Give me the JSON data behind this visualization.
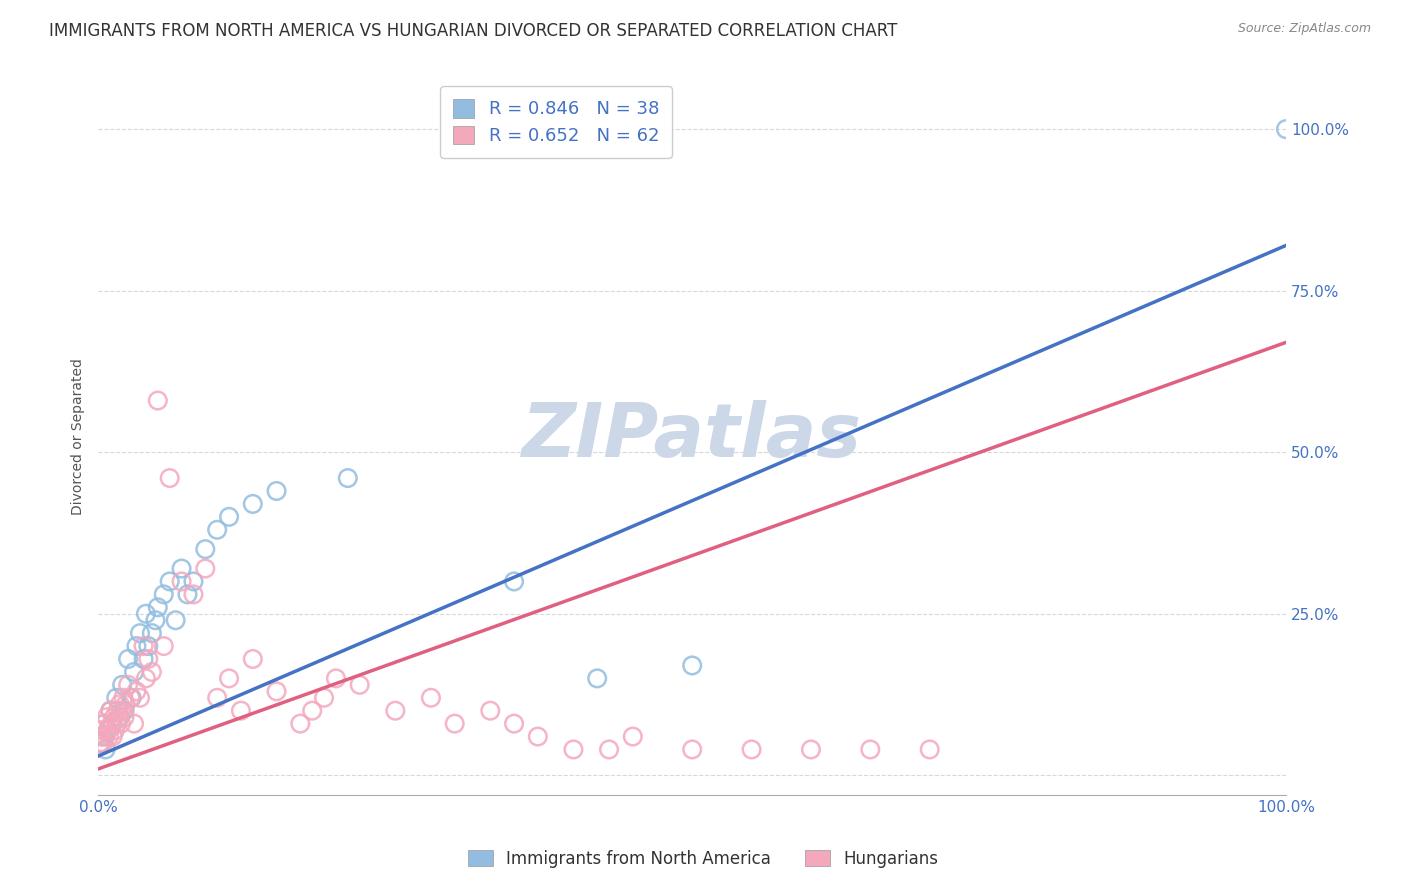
{
  "title": "IMMIGRANTS FROM NORTH AMERICA VS HUNGARIAN DIVORCED OR SEPARATED CORRELATION CHART",
  "source": "Source: ZipAtlas.com",
  "ylabel": "Divorced or Separated",
  "legend_blue_R": "R = 0.846",
  "legend_blue_N": "N = 38",
  "legend_pink_R": "R = 0.652",
  "legend_pink_N": "N = 62",
  "legend_blue_label": "Immigrants from North America",
  "legend_pink_label": "Hungarians",
  "blue_color": "#92bde0",
  "pink_color": "#f4a8bc",
  "blue_line_color": "#4472c4",
  "pink_line_color": "#e06080",
  "watermark": "ZIPatlas",
  "watermark_color": "#ccd8e8",
  "blue_scatter_x": [
    0.2,
    0.4,
    0.5,
    0.6,
    0.8,
    1.0,
    1.2,
    1.5,
    1.8,
    2.0,
    2.2,
    2.5,
    2.8,
    3.0,
    3.2,
    3.5,
    3.8,
    4.0,
    4.2,
    4.5,
    4.8,
    5.0,
    5.5,
    6.0,
    6.5,
    7.0,
    7.5,
    8.0,
    9.0,
    10.0,
    11.0,
    13.0,
    15.0,
    21.0,
    35.0,
    42.0,
    50.0,
    100.0
  ],
  "blue_scatter_y": [
    5.0,
    6.0,
    8.0,
    4.0,
    7.0,
    10.0,
    8.0,
    12.0,
    9.0,
    14.0,
    10.0,
    18.0,
    12.0,
    16.0,
    20.0,
    22.0,
    18.0,
    25.0,
    20.0,
    22.0,
    24.0,
    26.0,
    28.0,
    30.0,
    24.0,
    32.0,
    28.0,
    30.0,
    35.0,
    38.0,
    40.0,
    42.0,
    44.0,
    46.0,
    30.0,
    15.0,
    17.0,
    100.0
  ],
  "pink_scatter_x": [
    0.1,
    0.2,
    0.3,
    0.4,
    0.5,
    0.6,
    0.7,
    0.8,
    0.9,
    1.0,
    1.1,
    1.2,
    1.3,
    1.4,
    1.5,
    1.6,
    1.7,
    1.8,
    1.9,
    2.0,
    2.1,
    2.2,
    2.3,
    2.5,
    2.7,
    3.0,
    3.2,
    3.5,
    3.8,
    4.0,
    4.2,
    4.5,
    5.0,
    5.5,
    6.0,
    7.0,
    8.0,
    9.0,
    10.0,
    11.0,
    12.0,
    13.0,
    15.0,
    17.0,
    18.0,
    19.0,
    20.0,
    22.0,
    25.0,
    28.0,
    30.0,
    33.0,
    35.0,
    37.0,
    40.0,
    43.0,
    45.0,
    50.0,
    55.0,
    60.0,
    65.0,
    70.0
  ],
  "pink_scatter_y": [
    5.0,
    6.0,
    7.0,
    5.0,
    8.0,
    6.0,
    9.0,
    7.0,
    6.0,
    10.0,
    8.0,
    6.0,
    9.0,
    7.0,
    8.0,
    10.0,
    9.0,
    11.0,
    8.0,
    10.0,
    12.0,
    9.0,
    11.0,
    14.0,
    12.0,
    8.0,
    13.0,
    12.0,
    20.0,
    15.0,
    18.0,
    16.0,
    58.0,
    20.0,
    46.0,
    30.0,
    28.0,
    32.0,
    12.0,
    15.0,
    10.0,
    18.0,
    13.0,
    8.0,
    10.0,
    12.0,
    15.0,
    14.0,
    10.0,
    12.0,
    8.0,
    10.0,
    8.0,
    6.0,
    4.0,
    4.0,
    6.0,
    4.0,
    4.0,
    4.0,
    4.0,
    4.0
  ],
  "blue_line_x0": 0.0,
  "blue_line_y0": 3.0,
  "blue_line_x1": 100.0,
  "blue_line_y1": 82.0,
  "pink_line_x0": 0.0,
  "pink_line_y0": 1.0,
  "pink_line_x1": 100.0,
  "pink_line_y1": 67.0,
  "xlim": [
    0.0,
    100.0
  ],
  "ylim": [
    -3.0,
    108.0
  ],
  "xtick_locs": [
    0,
    25,
    50,
    75,
    100
  ],
  "xtick_labels": [
    "0.0%",
    "",
    "",
    "",
    "100.0%"
  ],
  "ytick_locs": [
    0,
    25,
    50,
    75,
    100
  ],
  "ytick_right_labels": [
    "",
    "25.0%",
    "50.0%",
    "75.0%",
    "100.0%"
  ],
  "grid_color": "#d8d8d8",
  "background_color": "#ffffff",
  "title_fontsize": 12,
  "axis_label_fontsize": 10,
  "tick_fontsize": 11
}
